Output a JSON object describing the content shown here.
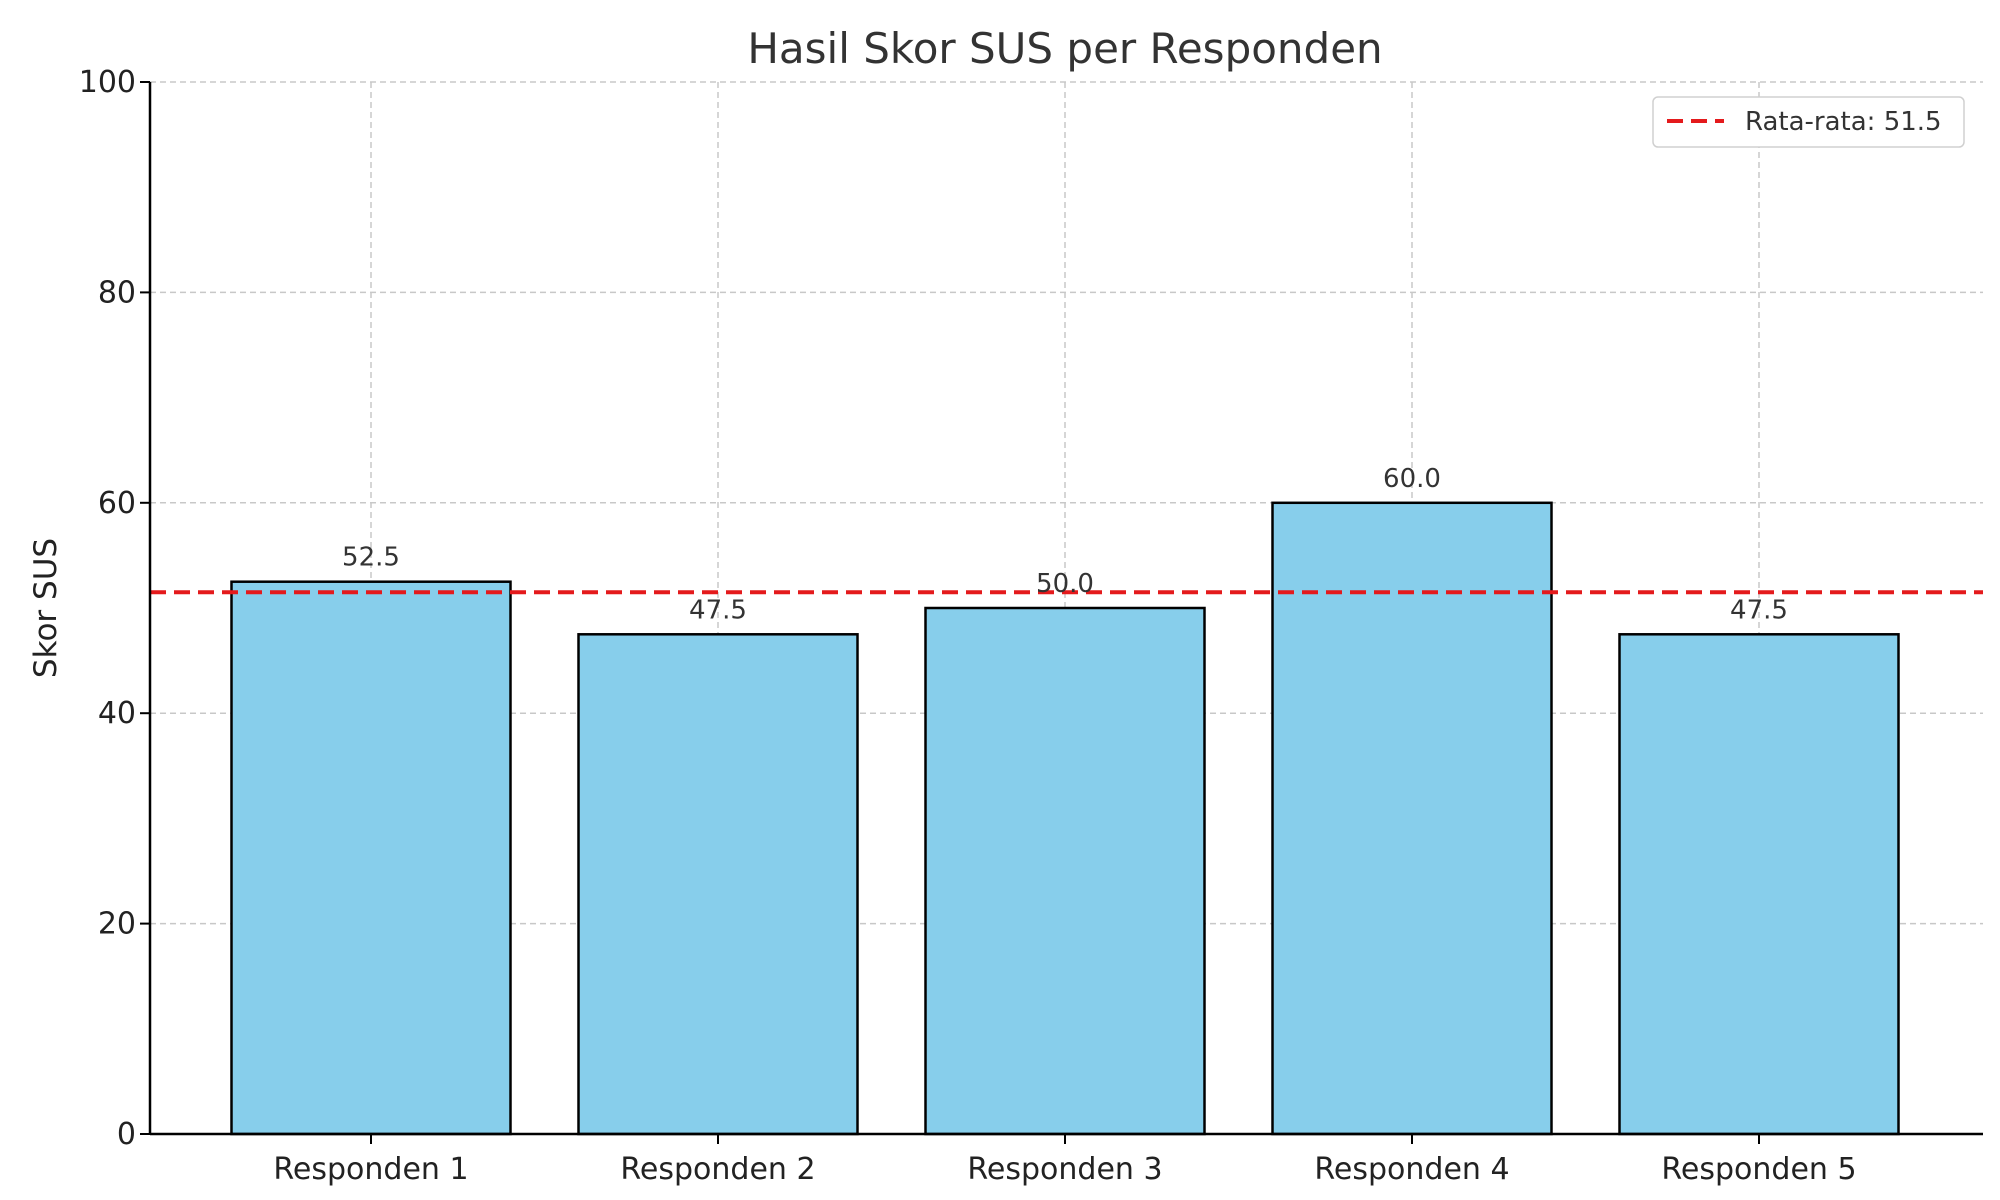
{
  "chart_data": {
    "type": "bar",
    "title": "Hasil Skor SUS per Responden",
    "xlabel": "",
    "ylabel": "Skor SUS",
    "categories": [
      "Responden 1",
      "Responden 2",
      "Responden 3",
      "Responden 4",
      "Responden 5"
    ],
    "values": [
      52.5,
      47.5,
      50.0,
      60.0,
      47.5
    ],
    "data_labels": [
      "52.5",
      "47.5",
      "50.0",
      "60.0",
      "47.5"
    ],
    "ylim": [
      0,
      100
    ],
    "yticks": [
      0,
      20,
      40,
      60,
      80,
      100
    ],
    "grid": true,
    "bar_color": "#87CEEB",
    "bar_edge_color": "#000000",
    "reference_line": {
      "label": "Rata-rata: 51.5",
      "value": 51.5,
      "color": "#E41A1C",
      "style": "dashed"
    },
    "legend": {
      "placement": "top-right",
      "entries": [
        "Rata-rata: 51.5"
      ]
    }
  }
}
